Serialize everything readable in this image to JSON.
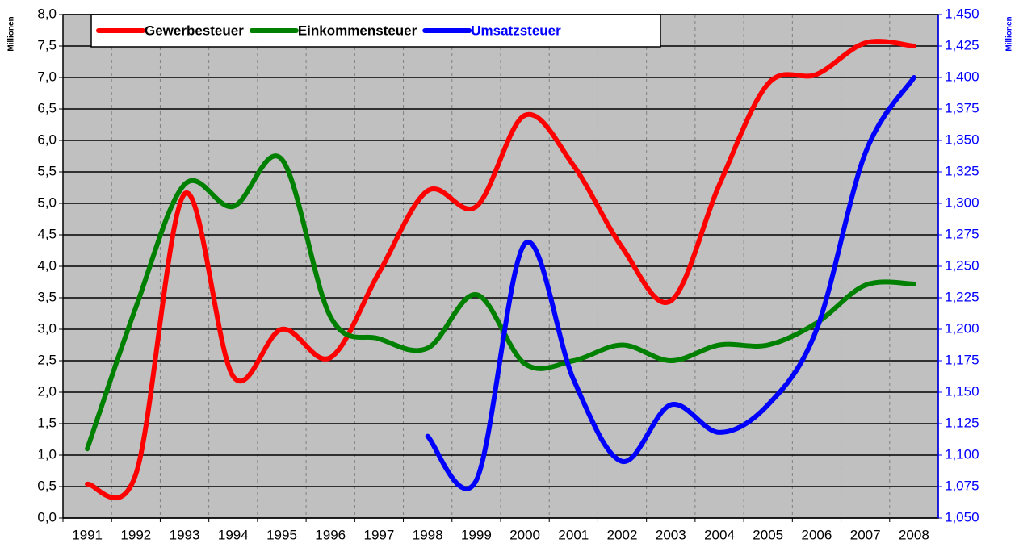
{
  "chart_data": {
    "type": "line",
    "categories": [
      "1991",
      "1992",
      "1993",
      "1994",
      "1995",
      "1996",
      "1997",
      "1998",
      "1999",
      "2000",
      "2001",
      "2002",
      "2003",
      "2004",
      "2005",
      "2006",
      "2007",
      "2008"
    ],
    "series": [
      {
        "name": "Gewerbesteuer",
        "color": "#ff0000",
        "values": [
          0.54,
          0.7,
          5.15,
          2.25,
          3.0,
          2.55,
          3.9,
          5.2,
          4.95,
          6.4,
          5.6,
          4.3,
          3.45,
          5.3,
          6.9,
          7.05,
          7.55,
          7.5
        ]
      },
      {
        "name": "Einkommensteuer",
        "color": "#008000",
        "values": [
          1.1,
          3.35,
          5.3,
          4.95,
          5.7,
          3.2,
          2.85,
          2.7,
          3.55,
          2.45,
          2.5,
          2.75,
          2.5,
          2.75,
          2.75,
          3.1,
          3.7,
          3.72
        ]
      },
      {
        "name": "Umsatzsteuer",
        "color": "#0000ff",
        "axis": "y2",
        "values": [
          null,
          null,
          null,
          null,
          null,
          null,
          null,
          1.115,
          1.08,
          1.268,
          1.16,
          1.095,
          1.14,
          1.118,
          1.14,
          1.2,
          1.34,
          1.4
        ]
      }
    ],
    "y_label": "Millionen",
    "y2_label": "Millionen",
    "ylim": [
      0,
      8
    ],
    "yticks": [
      {
        "value": 0,
        "label": "0,0"
      },
      {
        "value": 0.5,
        "label": "0,5"
      },
      {
        "value": 1,
        "label": "1,0"
      },
      {
        "value": 1.5,
        "label": "1,5"
      },
      {
        "value": 2,
        "label": "2,0"
      },
      {
        "value": 2.5,
        "label": "2,5"
      },
      {
        "value": 3,
        "label": "3,0"
      },
      {
        "value": 3.5,
        "label": "3,5"
      },
      {
        "value": 4,
        "label": "4,0"
      },
      {
        "value": 4.5,
        "label": "4,5"
      },
      {
        "value": 5,
        "label": "5,0"
      },
      {
        "value": 5.5,
        "label": "5,5"
      },
      {
        "value": 6,
        "label": "6,0"
      },
      {
        "value": 6.5,
        "label": "6,5"
      },
      {
        "value": 7,
        "label": "7,0"
      },
      {
        "value": 7.5,
        "label": "7,5"
      },
      {
        "value": 8,
        "label": "8,0"
      }
    ],
    "y2lim": [
      1.05,
      1.45
    ],
    "y2ticks": [
      {
        "value": 1.05,
        "label": "1,050"
      },
      {
        "value": 1.075,
        "label": "1,075"
      },
      {
        "value": 1.1,
        "label": "1,100"
      },
      {
        "value": 1.125,
        "label": "1,125"
      },
      {
        "value": 1.15,
        "label": "1,150"
      },
      {
        "value": 1.175,
        "label": "1,175"
      },
      {
        "value": 1.2,
        "label": "1,200"
      },
      {
        "value": 1.225,
        "label": "1,225"
      },
      {
        "value": 1.25,
        "label": "1,250"
      },
      {
        "value": 1.275,
        "label": "1,275"
      },
      {
        "value": 1.3,
        "label": "1,300"
      },
      {
        "value": 1.325,
        "label": "1,325"
      },
      {
        "value": 1.35,
        "label": "1,350"
      },
      {
        "value": 1.375,
        "label": "1,375"
      },
      {
        "value": 1.4,
        "label": "1,400"
      },
      {
        "value": 1.425,
        "label": "1,425"
      },
      {
        "value": 1.45,
        "label": "1,450"
      }
    ],
    "grid": true,
    "legend": "top"
  }
}
